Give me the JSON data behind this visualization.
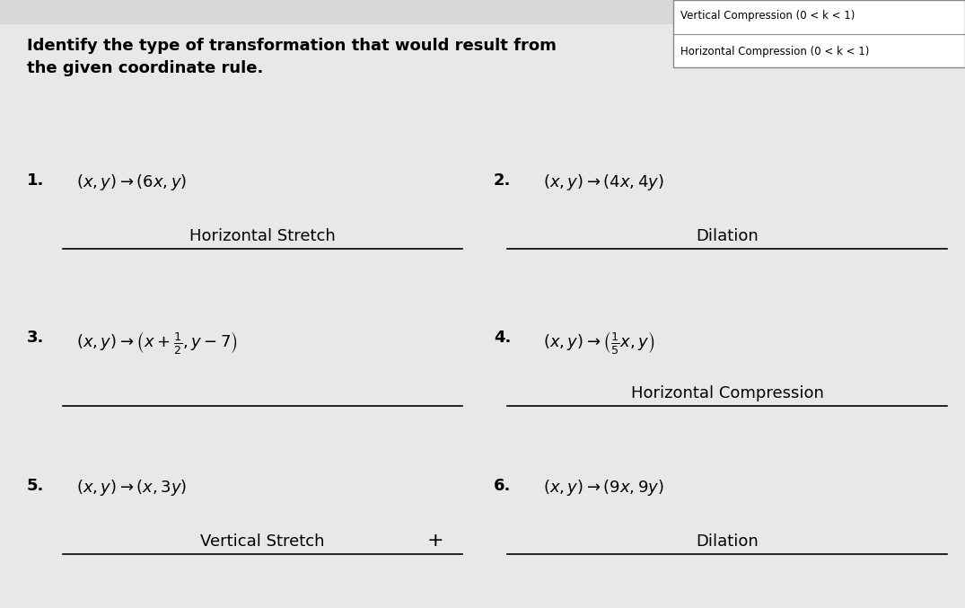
{
  "bg_color": "#d8d8d8",
  "box_bg": "#f5f5f5",
  "title_text": "Identify the type of transformation that would result from\nthe given coordinate rule.",
  "corner_box": {
    "line1": "Vertical Compression (0 < k < 1)",
    "line2": "Horizontal Compression (0 < k < 1)"
  },
  "problems": [
    {
      "number": "1.",
      "rule": "$(x, y) \\rightarrow (6x, y)$",
      "answer": "Horizontal Stretch",
      "col": 0
    },
    {
      "number": "2.",
      "rule": "$(x, y) \\rightarrow (4x, 4y)$",
      "answer": "Dilation",
      "col": 1
    },
    {
      "number": "3.",
      "rule": "$(x, y) \\rightarrow \\left(x + \\frac{1}{2}, y - 7\\right)$",
      "answer": "",
      "col": 0
    },
    {
      "number": "4.",
      "rule": "$(x, y) \\rightarrow \\left(\\frac{1}{5}x, y\\right)$",
      "answer": "Horizontal Compression",
      "col": 1
    },
    {
      "number": "5.",
      "rule": "$(x, y) \\rightarrow (x, 3y)$",
      "answer": "Vertical Stretch",
      "col": 0
    },
    {
      "number": "6.",
      "rule": "$(x, y) \\rightarrow (9x, 9y)$",
      "answer": "Dilation",
      "col": 1
    }
  ]
}
